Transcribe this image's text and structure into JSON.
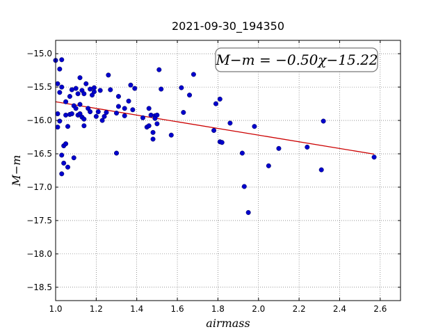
{
  "chart_data": {
    "type": "scatter",
    "title": "2021-09-30_194350",
    "xlabel": "airmass",
    "ylabel": "M−m",
    "xlim": [
      1.0,
      2.7
    ],
    "ylim": [
      -18.7,
      -14.8
    ],
    "y_inverted": true,
    "grid": true,
    "x_ticks": [
      "1.0",
      "1.2",
      "1.4",
      "1.6",
      "1.8",
      "2.0",
      "2.2",
      "2.4",
      "2.6"
    ],
    "y_ticks": [
      "−15.0",
      "−15.5",
      "−16.0",
      "−16.5",
      "−17.0",
      "−17.5",
      "−18.0",
      "−18.5"
    ],
    "annotation": "M−m = −0.50χ−15.22",
    "colors": {
      "points": "#0000cc",
      "fit_line": "#cc0000"
    },
    "fit": {
      "slope": -0.5,
      "intercept": -15.22,
      "x_range": [
        1.0,
        2.57
      ]
    },
    "points": [
      {
        "x": 1.0,
        "y": -15.1
      },
      {
        "x": 1.01,
        "y": -15.45
      },
      {
        "x": 1.01,
        "y": -15.9
      },
      {
        "x": 1.01,
        "y": -16.1
      },
      {
        "x": 1.02,
        "y": -15.23
      },
      {
        "x": 1.02,
        "y": -15.58
      },
      {
        "x": 1.02,
        "y": -16.01
      },
      {
        "x": 1.03,
        "y": -16.52
      },
      {
        "x": 1.03,
        "y": -16.8
      },
      {
        "x": 1.03,
        "y": -15.09
      },
      {
        "x": 1.03,
        "y": -15.5
      },
      {
        "x": 1.04,
        "y": -16.38
      },
      {
        "x": 1.04,
        "y": -16.64
      },
      {
        "x": 1.05,
        "y": -16.35
      },
      {
        "x": 1.05,
        "y": -15.92
      },
      {
        "x": 1.05,
        "y": -15.72
      },
      {
        "x": 1.06,
        "y": -16.09
      },
      {
        "x": 1.06,
        "y": -16.7
      },
      {
        "x": 1.07,
        "y": -15.91
      },
      {
        "x": 1.07,
        "y": -15.64
      },
      {
        "x": 1.08,
        "y": -15.9
      },
      {
        "x": 1.08,
        "y": -15.54
      },
      {
        "x": 1.09,
        "y": -15.78
      },
      {
        "x": 1.09,
        "y": -16.56
      },
      {
        "x": 1.1,
        "y": -15.52
      },
      {
        "x": 1.1,
        "y": -15.82
      },
      {
        "x": 1.11,
        "y": -15.6
      },
      {
        "x": 1.11,
        "y": -15.92
      },
      {
        "x": 1.12,
        "y": -15.76
      },
      {
        "x": 1.12,
        "y": -15.36
      },
      {
        "x": 1.12,
        "y": -15.9
      },
      {
        "x": 1.13,
        "y": -15.55
      },
      {
        "x": 1.13,
        "y": -15.95
      },
      {
        "x": 1.14,
        "y": -15.6
      },
      {
        "x": 1.14,
        "y": -16.08
      },
      {
        "x": 1.14,
        "y": -15.98
      },
      {
        "x": 1.15,
        "y": -15.45
      },
      {
        "x": 1.16,
        "y": -15.82
      },
      {
        "x": 1.17,
        "y": -15.87
      },
      {
        "x": 1.17,
        "y": -15.53
      },
      {
        "x": 1.18,
        "y": -15.62
      },
      {
        "x": 1.19,
        "y": -15.57
      },
      {
        "x": 1.19,
        "y": -15.51
      },
      {
        "x": 1.2,
        "y": -15.94
      },
      {
        "x": 1.21,
        "y": -15.87
      },
      {
        "x": 1.22,
        "y": -15.55
      },
      {
        "x": 1.23,
        "y": -16.0
      },
      {
        "x": 1.24,
        "y": -15.94
      },
      {
        "x": 1.25,
        "y": -15.88
      },
      {
        "x": 1.26,
        "y": -15.32
      },
      {
        "x": 1.27,
        "y": -15.54
      },
      {
        "x": 1.3,
        "y": -16.49
      },
      {
        "x": 1.3,
        "y": -15.89
      },
      {
        "x": 1.31,
        "y": -15.79
      },
      {
        "x": 1.31,
        "y": -15.64
      },
      {
        "x": 1.34,
        "y": -15.93
      },
      {
        "x": 1.34,
        "y": -15.82
      },
      {
        "x": 1.36,
        "y": -15.71
      },
      {
        "x": 1.37,
        "y": -15.47
      },
      {
        "x": 1.38,
        "y": -15.84
      },
      {
        "x": 1.39,
        "y": -15.52
      },
      {
        "x": 1.43,
        "y": -15.96
      },
      {
        "x": 1.45,
        "y": -16.1
      },
      {
        "x": 1.46,
        "y": -16.08
      },
      {
        "x": 1.46,
        "y": -15.82
      },
      {
        "x": 1.47,
        "y": -15.92
      },
      {
        "x": 1.48,
        "y": -16.28
      },
      {
        "x": 1.48,
        "y": -16.18
      },
      {
        "x": 1.49,
        "y": -15.93
      },
      {
        "x": 1.49,
        "y": -15.97
      },
      {
        "x": 1.5,
        "y": -16.05
      },
      {
        "x": 1.5,
        "y": -15.92
      },
      {
        "x": 1.51,
        "y": -15.24
      },
      {
        "x": 1.52,
        "y": -15.53
      },
      {
        "x": 1.57,
        "y": -16.22
      },
      {
        "x": 1.62,
        "y": -15.51
      },
      {
        "x": 1.63,
        "y": -15.88
      },
      {
        "x": 1.66,
        "y": -15.62
      },
      {
        "x": 1.68,
        "y": -15.31
      },
      {
        "x": 1.78,
        "y": -16.15
      },
      {
        "x": 1.79,
        "y": -15.75
      },
      {
        "x": 1.81,
        "y": -15.68
      },
      {
        "x": 1.81,
        "y": -16.32
      },
      {
        "x": 1.82,
        "y": -16.33
      },
      {
        "x": 1.86,
        "y": -16.04
      },
      {
        "x": 1.92,
        "y": -16.49
      },
      {
        "x": 1.93,
        "y": -16.99
      },
      {
        "x": 1.95,
        "y": -17.38
      },
      {
        "x": 1.98,
        "y": -16.09
      },
      {
        "x": 2.05,
        "y": -16.68
      },
      {
        "x": 2.1,
        "y": -16.42
      },
      {
        "x": 2.24,
        "y": -16.4
      },
      {
        "x": 2.31,
        "y": -16.74
      },
      {
        "x": 2.32,
        "y": -16.01
      },
      {
        "x": 2.57,
        "y": -16.55
      }
    ]
  }
}
